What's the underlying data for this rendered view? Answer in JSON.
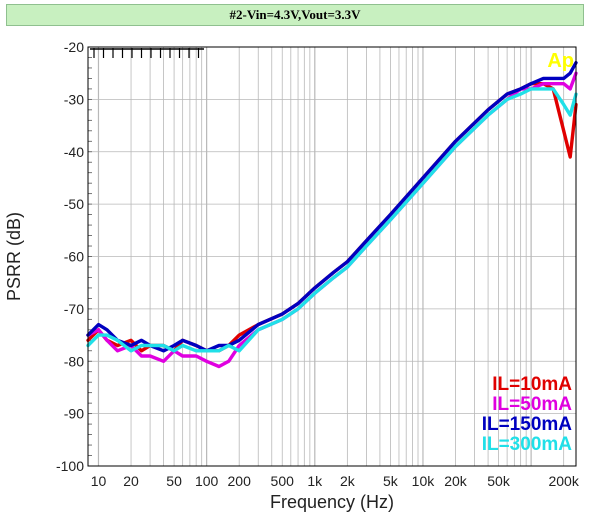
{
  "chart_data": {
    "type": "line",
    "title": "#2-Vin=4.3V,Vout=3.3V",
    "xlabel": "Frequency (Hz)",
    "ylabel": "PSRR (dB)",
    "xscale": "log",
    "xlim": [
      8,
      260000
    ],
    "ylim": [
      -100,
      -20
    ],
    "grid": true,
    "corner_annotation": "Ap",
    "x_tick_labels": [
      {
        "x": 10,
        "label": "10"
      },
      {
        "x": 20,
        "label": "20"
      },
      {
        "x": 50,
        "label": "50"
      },
      {
        "x": 100,
        "label": "100"
      },
      {
        "x": 200,
        "label": "200"
      },
      {
        "x": 500,
        "label": "500"
      },
      {
        "x": 1000,
        "label": "1k"
      },
      {
        "x": 2000,
        "label": "2k"
      },
      {
        "x": 5000,
        "label": "5k"
      },
      {
        "x": 10000,
        "label": "10k"
      },
      {
        "x": 20000,
        "label": "20k"
      },
      {
        "x": 50000,
        "label": "50k"
      },
      {
        "x": 200000,
        "label": "200k"
      }
    ],
    "y_tick_labels": [
      "-20",
      "-30",
      "-40",
      "-50",
      "-60",
      "-70",
      "-80",
      "-90",
      "-100"
    ],
    "y_ticks": [
      -20,
      -30,
      -40,
      -50,
      -60,
      -70,
      -80,
      -90,
      -100
    ],
    "legend_position": "bottom-right",
    "series": [
      {
        "name": "IL=10mA",
        "color": "#e00000",
        "x": [
          8,
          10,
          12,
          15,
          20,
          25,
          30,
          40,
          50,
          60,
          80,
          100,
          130,
          160,
          200,
          300,
          500,
          700,
          1000,
          1500,
          2000,
          3000,
          5000,
          10000,
          20000,
          40000,
          60000,
          80000,
          100000,
          130000,
          160000,
          200000,
          230000,
          260000
        ],
        "y": [
          -76,
          -74,
          -76,
          -77,
          -76,
          -78,
          -77,
          -77,
          -78,
          -76,
          -77,
          -78,
          -78,
          -77,
          -75,
          -73,
          -71,
          -69,
          -66,
          -63,
          -61,
          -57,
          -52,
          -45,
          -38,
          -32,
          -29,
          -28,
          -27,
          -27,
          -28,
          -36,
          -41,
          -31
        ]
      },
      {
        "name": "IL=50mA",
        "color": "#e000e0",
        "x": [
          8,
          10,
          12,
          15,
          20,
          25,
          30,
          40,
          50,
          60,
          80,
          100,
          130,
          160,
          200,
          300,
          500,
          700,
          1000,
          1500,
          2000,
          3000,
          5000,
          10000,
          20000,
          40000,
          60000,
          80000,
          100000,
          130000,
          160000,
          200000,
          230000,
          260000
        ],
        "y": [
          -75,
          -74,
          -76,
          -78,
          -77,
          -79,
          -79,
          -80,
          -78,
          -79,
          -79,
          -80,
          -81,
          -80,
          -77,
          -74,
          -72,
          -70,
          -67,
          -64,
          -62,
          -58,
          -53,
          -46,
          -39,
          -33,
          -30,
          -28,
          -28,
          -27,
          -27,
          -27,
          -28,
          -25
        ]
      },
      {
        "name": "IL=150mA",
        "color": "#0000c0",
        "x": [
          8,
          10,
          12,
          15,
          20,
          25,
          30,
          40,
          50,
          60,
          80,
          100,
          130,
          160,
          200,
          300,
          500,
          700,
          1000,
          1500,
          2000,
          3000,
          5000,
          10000,
          20000,
          40000,
          60000,
          80000,
          100000,
          130000,
          160000,
          200000,
          230000,
          260000
        ],
        "y": [
          -75,
          -73,
          -74,
          -76,
          -77,
          -76,
          -77,
          -78,
          -77,
          -76,
          -77,
          -78,
          -77,
          -77,
          -76,
          -73,
          -71,
          -69,
          -66,
          -63,
          -61,
          -57,
          -52,
          -45,
          -38,
          -32,
          -29,
          -28,
          -27,
          -26,
          -26,
          -26,
          -25,
          -23
        ]
      },
      {
        "name": "IL=300mA",
        "color": "#20e0e8",
        "x": [
          8,
          10,
          12,
          15,
          20,
          25,
          30,
          40,
          50,
          60,
          80,
          100,
          130,
          160,
          200,
          300,
          500,
          700,
          1000,
          1500,
          2000,
          3000,
          5000,
          10000,
          20000,
          40000,
          60000,
          80000,
          100000,
          130000,
          160000,
          200000,
          230000,
          260000
        ],
        "y": [
          -77,
          -75,
          -75,
          -76,
          -78,
          -77,
          -77,
          -77,
          -78,
          -77,
          -78,
          -78,
          -78,
          -77,
          -78,
          -74,
          -72,
          -70,
          -67,
          -64,
          -62,
          -58,
          -53,
          -46,
          -39,
          -33,
          -30,
          -29,
          -28,
          -28,
          -28,
          -31,
          -33,
          -29
        ]
      }
    ]
  }
}
